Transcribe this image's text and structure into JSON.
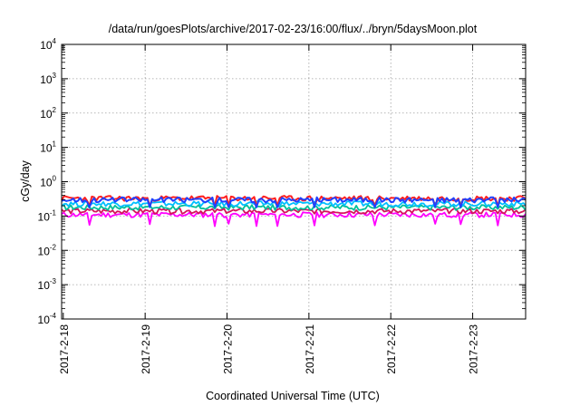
{
  "chart_data": {
    "type": "line",
    "title": "/data/run/goesPlots/archive/2017-02-23/16:00/flux/../bryn/5daysMoon.plot",
    "xlabel": "Coordinated Universal Time (UTC)",
    "ylabel": "cGy/day",
    "yscale": "log",
    "ylim": [
      0.0001,
      10000
    ],
    "y_ticks": [
      {
        "base": "10",
        "exp": "-4",
        "value": 0.0001
      },
      {
        "base": "10",
        "exp": "-3",
        "value": 0.001
      },
      {
        "base": "10",
        "exp": "-2",
        "value": 0.01
      },
      {
        "base": "10",
        "exp": "-1",
        "value": 0.1
      },
      {
        "base": "10",
        "exp": "0",
        "value": 1
      },
      {
        "base": "10",
        "exp": "1",
        "value": 10
      },
      {
        "base": "10",
        "exp": "2",
        "value": 100
      },
      {
        "base": "10",
        "exp": "3",
        "value": 1000
      },
      {
        "base": "10",
        "exp": "4",
        "value": 10000
      }
    ],
    "xlim": [
      "2017-02-18",
      "2017-02-23 16:00"
    ],
    "x_ticks": [
      "2017-2-18",
      "2017-2-19",
      "2017-2-20",
      "2017-2-21",
      "2017-2-22",
      "2017-2-23"
    ],
    "grid": true,
    "legend": "none",
    "series": [
      {
        "color": "#ff00ff",
        "base": 0.11,
        "dips": [
          0.05,
          0.055,
          0.05,
          0.06,
          0.05,
          0.055,
          0.06,
          0.05,
          0.055,
          0.05
        ]
      },
      {
        "color": "#d4145a",
        "base": 0.14
      },
      {
        "color": "#00c09a",
        "base": 0.18
      },
      {
        "color": "#00bfff",
        "base": 0.23
      },
      {
        "color": "#ff2020",
        "base": 0.33
      },
      {
        "color": "#2040ff",
        "base": 0.3
      }
    ],
    "series_note_days": 5.67
  }
}
